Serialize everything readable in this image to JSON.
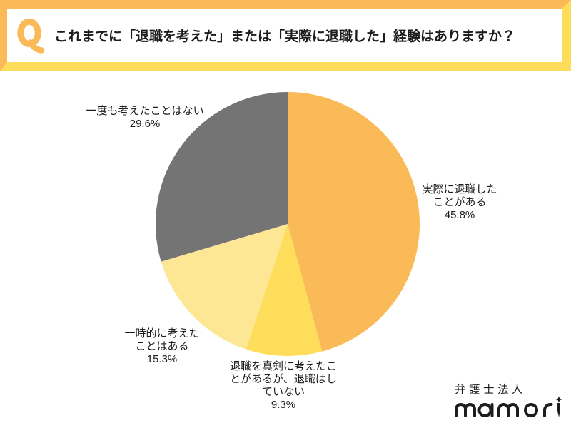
{
  "banner": {
    "q_label": "Q",
    "title": "これまでに「退職を考えた」または「実際に退職した」経験はありますか？"
  },
  "colors": {
    "orange": "#fbba58",
    "yellow": "#fedd5b",
    "pale_yellow": "#fde795",
    "gray": "#747474",
    "text": "#1c1c1c",
    "logo": "#1d1d20"
  },
  "chart_data": {
    "type": "pie",
    "title": "これまでに「退職を考えた」または「実際に退職した」経験はありますか？",
    "legend": "none",
    "labels_position": "outside",
    "start_angle_deg": 0,
    "direction": "clockwise",
    "slices": [
      {
        "label": "実際に退職した\nことがある",
        "value": 45.8,
        "pct_label": "45.8%",
        "color": "#fbba58"
      },
      {
        "label": "退職を真剣に考えたこ\nとがあるが、退職はし\nていない",
        "value": 9.3,
        "pct_label": "9.3%",
        "color": "#fedd5b"
      },
      {
        "label": "一時的に考えた\nことはある",
        "value": 15.3,
        "pct_label": "15.3%",
        "color": "#fde795"
      },
      {
        "label": "一度も考えたことはない",
        "value": 29.6,
        "pct_label": "29.6%",
        "color": "#747474"
      }
    ]
  },
  "logo": {
    "company_type": "弁護士法人",
    "brand": "mamori"
  }
}
